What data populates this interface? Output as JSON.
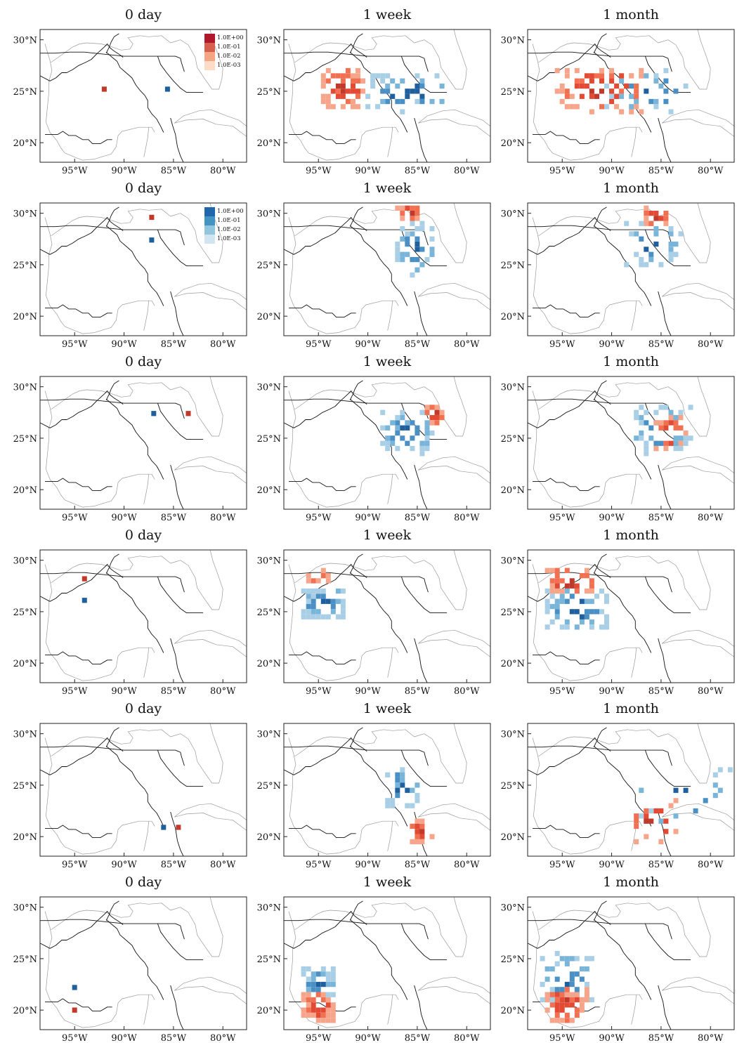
{
  "figure": {
    "col_titles": [
      "0 day",
      "1 week",
      "1 month"
    ],
    "lon_ticks": [
      "95°W",
      "90°W",
      "85°W",
      "80°W"
    ],
    "lat_ticks": [
      "30°N",
      "25°N",
      "20°N"
    ],
    "lon_values": [
      -95,
      -90,
      -85,
      -80
    ],
    "lat_values": [
      30,
      25,
      20
    ],
    "lon_range": [
      -98.5,
      -77.6
    ],
    "lat_range": [
      18.1,
      31.0
    ],
    "legend_labels": [
      "1.0E+00",
      "1.0E-01",
      "1.0E-02",
      "1.0E-03"
    ],
    "legend_colors": {
      "red": [
        "#b2182b",
        "#d6604d",
        "#f4a582",
        "#fddbc7"
      ],
      "blue": [
        "#2166ac",
        "#4393c3",
        "#92c5de",
        "#d1e5f0"
      ]
    },
    "colors": {
      "red": [
        "#c0392b",
        "#e34a33",
        "#f27052",
        "#f6a58a"
      ],
      "blue": [
        "#1f5f9e",
        "#4a90c4",
        "#79b4d9",
        "#a9cfe6"
      ],
      "coast": "#9a9a9a",
      "boundary": "#111111"
    }
  },
  "chart_data": {
    "type": "heatmap",
    "description_units": "cells are [longitude, latitude, intensity-level 0..3]",
    "rows": [
      {
        "legend": "red",
        "panels": [
          {
            "red": [
              [
                -92,
                25.2,
                0
              ]
            ],
            "blue": [
              [
                -85.6,
                25.2,
                0
              ]
            ]
          },
          {
            "red_blobs": [
              [
                -92.5,
                25.3,
                2.2,
                1.8,
                55,
                23
              ]
            ],
            "blue_blobs": [
              [
                -86,
                24.8,
                4.5,
                1.6,
                45,
                41
              ]
            ]
          },
          {
            "red_blobs": [
              [
                -91,
                25.2,
                4.5,
                2.2,
                60,
                7
              ]
            ],
            "blue_blobs": [
              [
                -86,
                25,
                5,
                1.8,
                35,
                19
              ]
            ]
          }
        ]
      },
      {
        "legend": "blue",
        "panels": [
          {
            "red": [
              [
                -87.2,
                29.6,
                0
              ]
            ],
            "blue": [
              [
                -87.2,
                27.4,
                0
              ]
            ]
          },
          {
            "red_blobs": [
              [
                -85.7,
                30.1,
                1.2,
                0.5,
                18,
                5
              ]
            ],
            "blue_blobs": [
              [
                -85.3,
                26.5,
                1.8,
                2.5,
                40,
                11
              ]
            ]
          },
          {
            "red_blobs": [
              [
                -85.6,
                29.6,
                1.2,
                0.9,
                18,
                13
              ]
            ],
            "blue_blobs": [
              [
                -85.8,
                27,
                2.8,
                2.0,
                30,
                29
              ]
            ]
          }
        ]
      },
      {
        "legend": "none",
        "panels": [
          {
            "red": [
              [
                -83.5,
                27.4,
                0
              ]
            ],
            "blue": [
              [
                -87,
                27.4,
                0
              ]
            ]
          },
          {
            "red_blobs": [
              [
                -83.2,
                27.2,
                0.8,
                1.0,
                18,
                3
              ]
            ],
            "blue_blobs": [
              [
                -86,
                25.6,
                2.6,
                2.0,
                55,
                37
              ]
            ]
          },
          {
            "red_blobs": [
              [
                -84,
                25.4,
                1.5,
                1.8,
                22,
                17
              ]
            ],
            "blue_blobs": [
              [
                -85,
                25.8,
                3.0,
                2.2,
                40,
                43
              ]
            ]
          }
        ]
      },
      {
        "legend": "none",
        "panels": [
          {
            "red": [
              [
                -94,
                28.2,
                0
              ]
            ],
            "blue": [
              [
                -94,
                26.1,
                0
              ]
            ]
          },
          {
            "red_blobs": [
              [
                -95,
                28.4,
                1.2,
                0.4,
                14,
                31
              ]
            ],
            "blue_blobs": [
              [
                -94.5,
                25.8,
                2.2,
                1.5,
                60,
                47
              ]
            ]
          },
          {
            "red_blobs": [
              [
                -94,
                28,
                2.5,
                1.2,
                35,
                53
              ]
            ],
            "blue_blobs": [
              [
                -93.5,
                25.3,
                3.2,
                2.2,
                55,
                59
              ]
            ]
          }
        ]
      },
      {
        "legend": "none",
        "panels": [
          {
            "red": [
              [
                -84.5,
                20.9,
                0
              ]
            ],
            "blue": [
              [
                -86,
                20.9,
                0
              ]
            ]
          },
          {
            "red_blobs": [
              [
                -84.5,
                20.6,
                1.2,
                1.0,
                16,
                61
              ]
            ],
            "blue_blobs": [
              [
                -86.5,
                24.8,
                1.6,
                1.8,
                28,
                67
              ]
            ]
          },
          {
            "red_blobs": [
              [
                -85.5,
                21.5,
                2.5,
                2.0,
                20,
                71
              ]
            ],
            "blue_blobs": [
              [
                -83,
                23.8,
                5,
                3,
                18,
                73
              ]
            ]
          }
        ]
      },
      {
        "legend": "none",
        "panels": [
          {
            "red": [
              [
                -95,
                20,
                0
              ]
            ],
            "blue": [
              [
                -95,
                22.2,
                0
              ]
            ]
          },
          {
            "red_blobs": [
              [
                -95,
                20.3,
                1.6,
                1.2,
                45,
                79
              ]
            ],
            "blue_blobs": [
              [
                -95,
                22.6,
                1.5,
                1.3,
                45,
                83
              ]
            ]
          },
          {
            "red_blobs": [
              [
                -94.6,
                20.5,
                2.0,
                1.6,
                55,
                89
              ]
            ],
            "blue_blobs": [
              [
                -94.5,
                23,
                2.5,
                2.4,
                55,
                97
              ]
            ]
          }
        ]
      }
    ]
  }
}
